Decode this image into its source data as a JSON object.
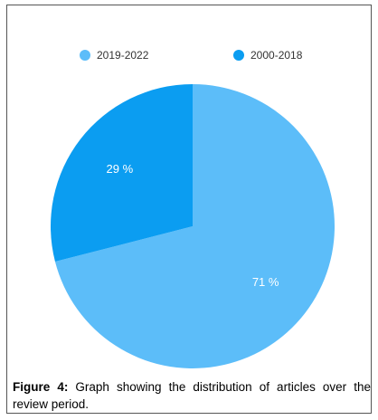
{
  "chart_data": {
    "type": "pie",
    "categories": [
      "2019-2022",
      "2000-2018"
    ],
    "values": [
      71,
      29
    ],
    "value_labels": [
      "71 %",
      "29 %"
    ],
    "colors": [
      "#5cbdf9",
      "#0b9df1"
    ],
    "legend": "top"
  },
  "caption": {
    "label": "Figure 4:",
    "text": "Graph showing the distribution of articles over the review period."
  }
}
